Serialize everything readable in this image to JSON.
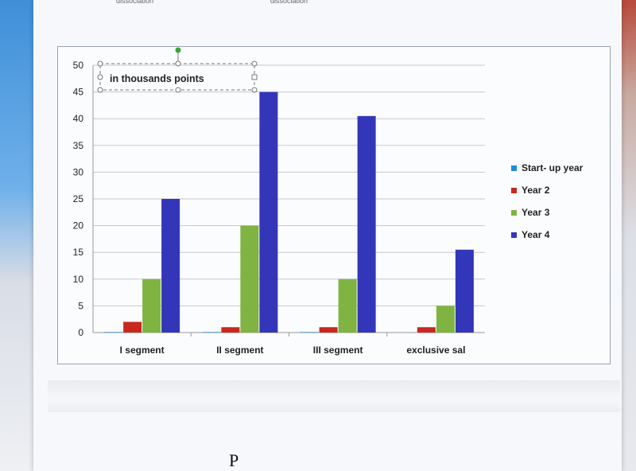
{
  "page_header": {
    "left_word": "dissociation",
    "right_word": "dissociation"
  },
  "footer_mark": "P",
  "chart_data": {
    "type": "bar",
    "annotation": "in thousands points",
    "categories": [
      "I segment",
      "II segment",
      "III segment",
      "exclusive sal"
    ],
    "series": [
      {
        "name": "Start- up year",
        "color": "#1f8ed8",
        "values": [
          0.1,
          0.1,
          0.1,
          0
        ]
      },
      {
        "name": "Year 2",
        "color": "#c8281e",
        "values": [
          2,
          1,
          1,
          1
        ]
      },
      {
        "name": "Year 3",
        "color": "#7fb342",
        "values": [
          10,
          20,
          10,
          5
        ]
      },
      {
        "name": "Year 4",
        "color": "#3336b8",
        "values": [
          25,
          45,
          40.5,
          15.5
        ]
      }
    ],
    "ylim": [
      0,
      50
    ],
    "yticks": [
      "0",
      "5",
      "10",
      "15",
      "20",
      "25",
      "30",
      "35",
      "40",
      "45",
      "50"
    ],
    "grid": true,
    "legend_position": "right"
  }
}
